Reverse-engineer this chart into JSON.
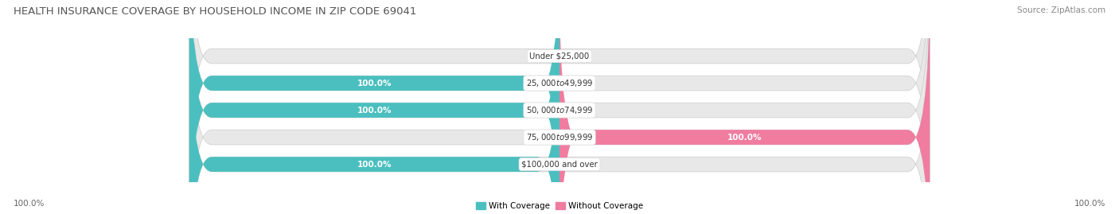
{
  "title": "HEALTH INSURANCE COVERAGE BY HOUSEHOLD INCOME IN ZIP CODE 69041",
  "source": "Source: ZipAtlas.com",
  "categories": [
    "Under $25,000",
    "$25,000 to $49,999",
    "$50,000 to $74,999",
    "$75,000 to $99,999",
    "$100,000 and over"
  ],
  "with_coverage": [
    0.0,
    100.0,
    100.0,
    0.0,
    100.0
  ],
  "without_coverage": [
    0.0,
    0.0,
    0.0,
    100.0,
    0.0
  ],
  "color_with": "#4bbfbf",
  "color_without": "#f07ca0",
  "color_bg_bar": "#e8e8e8",
  "figsize": [
    14.06,
    2.69
  ],
  "dpi": 100,
  "title_fontsize": 9.5,
  "label_fontsize": 7.5,
  "source_fontsize": 7.5,
  "legend_fontsize": 7.5
}
